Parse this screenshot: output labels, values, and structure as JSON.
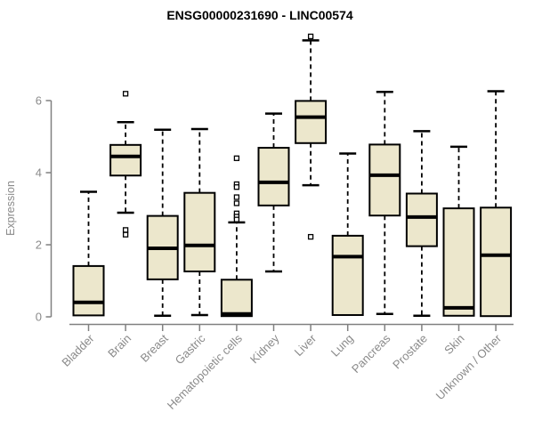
{
  "figure": {
    "background": "#ffffff"
  },
  "chart_data": {
    "type": "boxplot",
    "title": "ENSG00000231690 - LINC00574",
    "ylabel": "Expression",
    "xlabel": "",
    "ylim": [
      0,
      6
    ],
    "yticks": [
      0,
      2,
      4,
      6
    ],
    "grid": false,
    "legend": false,
    "categories": [
      "Bladder",
      "Brain",
      "Breast",
      "Gastric",
      "Hematopoietic cells",
      "Kidney",
      "Liver",
      "Lung",
      "Pancreas",
      "Prostate",
      "Skin",
      "Unknown / Other"
    ],
    "series": [
      {
        "name": "Bladder",
        "whisker_low": 0.04,
        "q1": 0.04,
        "median": 0.4,
        "q3": 1.41,
        "whisker_high": 3.47,
        "outliers": []
      },
      {
        "name": "Brain",
        "whisker_low": 2.89,
        "q1": 3.92,
        "median": 4.45,
        "q3": 4.77,
        "whisker_high": 5.4,
        "outliers": [
          6.19,
          2.41,
          2.28
        ]
      },
      {
        "name": "Breast",
        "whisker_low": 0.03,
        "q1": 1.04,
        "median": 1.9,
        "q3": 2.8,
        "whisker_high": 5.19,
        "outliers": []
      },
      {
        "name": "Gastric",
        "whisker_low": 0.05,
        "q1": 1.26,
        "median": 1.98,
        "q3": 3.44,
        "whisker_high": 5.21,
        "outliers": []
      },
      {
        "name": "Hematopoietic cells",
        "whisker_low": 0.02,
        "q1": 0.02,
        "median": 0.08,
        "q3": 1.03,
        "whisker_high": 2.62,
        "outliers": [
          4.4,
          3.68,
          3.6,
          3.32,
          3.15,
          2.87,
          2.78,
          2.7
        ]
      },
      {
        "name": "Kidney",
        "whisker_low": 1.26,
        "q1": 3.09,
        "median": 3.73,
        "q3": 4.69,
        "whisker_high": 5.64,
        "outliers": []
      },
      {
        "name": "Liver",
        "whisker_low": 3.65,
        "q1": 4.82,
        "median": 5.54,
        "q3": 5.99,
        "whisker_high": 7.67,
        "outliers": [
          7.78,
          2.22
        ]
      },
      {
        "name": "Lung",
        "whisker_low": 0.05,
        "q1": 0.05,
        "median": 1.67,
        "q3": 2.25,
        "whisker_high": 4.53,
        "outliers": []
      },
      {
        "name": "Pancreas",
        "whisker_low": 0.08,
        "q1": 2.81,
        "median": 3.93,
        "q3": 4.78,
        "whisker_high": 6.24,
        "outliers": []
      },
      {
        "name": "Prostate",
        "whisker_low": 0.03,
        "q1": 1.96,
        "median": 2.77,
        "q3": 3.42,
        "whisker_high": 5.15,
        "outliers": []
      },
      {
        "name": "Skin",
        "whisker_low": 0.03,
        "q1": 0.03,
        "median": 0.25,
        "q3": 3.01,
        "whisker_high": 4.72,
        "outliers": []
      },
      {
        "name": "Unknown / Other",
        "whisker_low": 0.02,
        "q1": 0.02,
        "median": 1.71,
        "q3": 3.03,
        "whisker_high": 6.26,
        "outliers": []
      }
    ],
    "style": {
      "box_fill": "#ece7cc",
      "box_stroke": "#000000",
      "median_color": "#000000",
      "whisker_color": "#000000",
      "outlier_fill": "#ffffff",
      "axis_color": "#808080",
      "label_color": "#8a8a8a",
      "title_color": "#000000"
    }
  }
}
